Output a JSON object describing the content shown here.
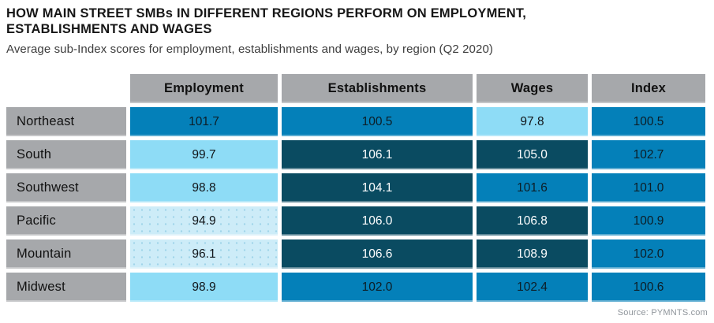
{
  "header": {
    "title": "HOW MAIN STREET SMBs IN DIFFERENT REGIONS PERFORM ON EMPLOYMENT, ESTABLISHMENTS AND WAGES",
    "subtitle": "Average sub-Index scores for employment, establishments and wages, by region (Q2 2020)"
  },
  "source": "Source: PYMNTS.com",
  "colors": {
    "mid_blue": "#0480b9",
    "dark_teal": "#0a4b61",
    "light_blue": "#8edcf6",
    "extra_light_blue": "#cdecf8",
    "gray": "#a6a8ab"
  },
  "table": {
    "columns": [
      "Employment",
      "Establishments",
      "Wages",
      "Index"
    ],
    "rows": [
      {
        "label": "Northeast",
        "values": [
          "101.7",
          "100.5",
          "97.8",
          "100.5"
        ],
        "tones": [
          "mid",
          "mid",
          "light",
          "mid"
        ]
      },
      {
        "label": "South",
        "values": [
          "99.7",
          "106.1",
          "105.0",
          "102.7"
        ],
        "tones": [
          "light",
          "dark",
          "dark",
          "mid"
        ]
      },
      {
        "label": "Southwest",
        "values": [
          "98.8",
          "104.1",
          "101.6",
          "101.0"
        ],
        "tones": [
          "light",
          "dark",
          "mid",
          "mid"
        ]
      },
      {
        "label": "Pacific",
        "values": [
          "94.9",
          "106.0",
          "106.8",
          "100.9"
        ],
        "tones": [
          "xlight",
          "dark",
          "dark",
          "mid"
        ]
      },
      {
        "label": "Mountain",
        "values": [
          "96.1",
          "106.6",
          "108.9",
          "102.0"
        ],
        "tones": [
          "xlight",
          "dark",
          "dark",
          "mid"
        ]
      },
      {
        "label": "Midwest",
        "values": [
          "98.9",
          "102.0",
          "102.4",
          "100.6"
        ],
        "tones": [
          "light",
          "mid",
          "mid",
          "mid"
        ]
      }
    ]
  },
  "chart_data": {
    "type": "heatmap",
    "title": "HOW MAIN STREET SMBs IN DIFFERENT REGIONS PERFORM ON EMPLOYMENT, ESTABLISHMENTS AND WAGES",
    "subtitle": "Average sub-Index scores for employment, establishments and wages, by region (Q2 2020)",
    "columns": [
      "Employment",
      "Establishments",
      "Wages",
      "Index"
    ],
    "rows": [
      "Northeast",
      "South",
      "Southwest",
      "Pacific",
      "Mountain",
      "Midwest"
    ],
    "values": [
      [
        101.7,
        100.5,
        97.8,
        100.5
      ],
      [
        99.7,
        106.1,
        105.0,
        102.7
      ],
      [
        98.8,
        104.1,
        101.6,
        101.0
      ],
      [
        94.9,
        106.0,
        106.8,
        100.9
      ],
      [
        96.1,
        106.6,
        108.9,
        102.0
      ],
      [
        98.9,
        102.0,
        102.4,
        100.6
      ]
    ],
    "legend_position": "none",
    "source": "Source: PYMNTS.com"
  }
}
